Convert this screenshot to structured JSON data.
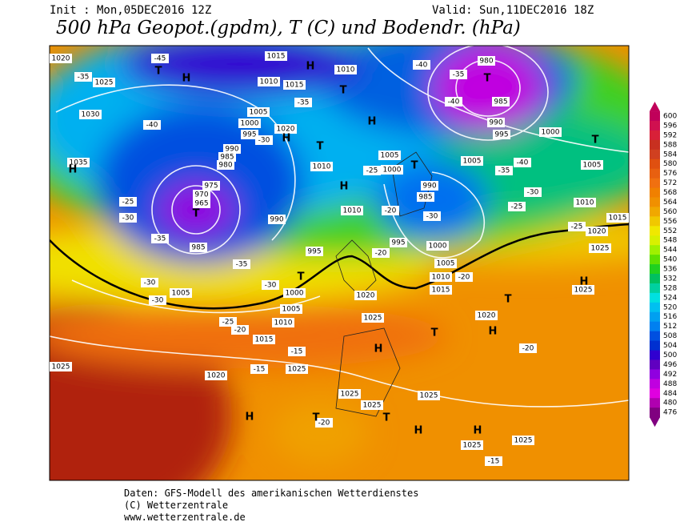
{
  "header": {
    "init": "Init : Mon,05DEC2016 12Z",
    "valid": "Valid: Sun,11DEC2016 18Z",
    "title": "500 hPa Geopot.(gpdm), T (C) und Bodendr. (hPa)"
  },
  "legend": {
    "values": [
      600,
      596,
      592,
      588,
      584,
      580,
      576,
      572,
      568,
      564,
      560,
      556,
      552,
      548,
      544,
      540,
      536,
      532,
      528,
      524,
      520,
      516,
      512,
      508,
      504,
      500,
      496,
      492,
      488,
      484,
      480,
      476
    ],
    "colors": [
      "#c0005a",
      "#d01050",
      "#d82038",
      "#c83020",
      "#d04020",
      "#e05010",
      "#e86010",
      "#f07010",
      "#f08000",
      "#f09000",
      "#f0a800",
      "#f0c800",
      "#f0e800",
      "#d8f000",
      "#a0f000",
      "#60e000",
      "#20d020",
      "#00c060",
      "#00d0a0",
      "#00e0e0",
      "#00c0f0",
      "#00a0f0",
      "#0080f0",
      "#0050e0",
      "#0030d0",
      "#3000d0",
      "#6000c0",
      "#9000e0",
      "#c000e0",
      "#e000e0",
      "#b000b0",
      "#800080"
    ]
  },
  "map_labels": [
    "1020",
    "1025",
    "1030",
    "1035",
    "-45",
    "1015",
    "1010",
    "1015",
    "1005",
    "1000",
    "995",
    "990",
    "985",
    "980",
    "975",
    "970",
    "965",
    "985",
    "990",
    "995",
    "1000",
    "1005",
    "1010",
    "1015",
    "1005",
    "-30",
    "-30",
    "1020",
    "1025",
    "1025",
    "1025",
    "1025",
    "1025",
    "1025",
    "1025",
    "1020",
    "1025",
    "1020",
    "1015",
    "1010",
    "1005",
    "1000",
    "995",
    "990",
    "985",
    "1000",
    "1005",
    "1010",
    "1005",
    "1000",
    "995",
    "990",
    "985",
    "980",
    "1005",
    "1010",
    "1015",
    "1020",
    "1025",
    "1025",
    "1010",
    "1020",
    "1010",
    "-40",
    "-35",
    "-40",
    "-40",
    "-35",
    "-30",
    "-25",
    "-25",
    "-20",
    "-20",
    "-15",
    "-15",
    "-15",
    "-20",
    "-25",
    "-20",
    "-35",
    "-30",
    "-35",
    "-40",
    "-35",
    "-30",
    "-25",
    "-30",
    "-35",
    "-25",
    "-20",
    "-20",
    "-30"
  ],
  "pressure_letters": [
    "H",
    "T",
    "H",
    "T",
    "H",
    "H",
    "T",
    "H",
    "H",
    "T",
    "T",
    "T",
    "T",
    "H",
    "T",
    "H",
    "T",
    "H",
    "H",
    "T",
    "T",
    "H",
    "H",
    "T"
  ],
  "footer": [
    "Daten: GFS-Modell des amerikanischen Wetterdienstes",
    "(C) Wetterzentrale",
    "www.wetterzentrale.de"
  ]
}
